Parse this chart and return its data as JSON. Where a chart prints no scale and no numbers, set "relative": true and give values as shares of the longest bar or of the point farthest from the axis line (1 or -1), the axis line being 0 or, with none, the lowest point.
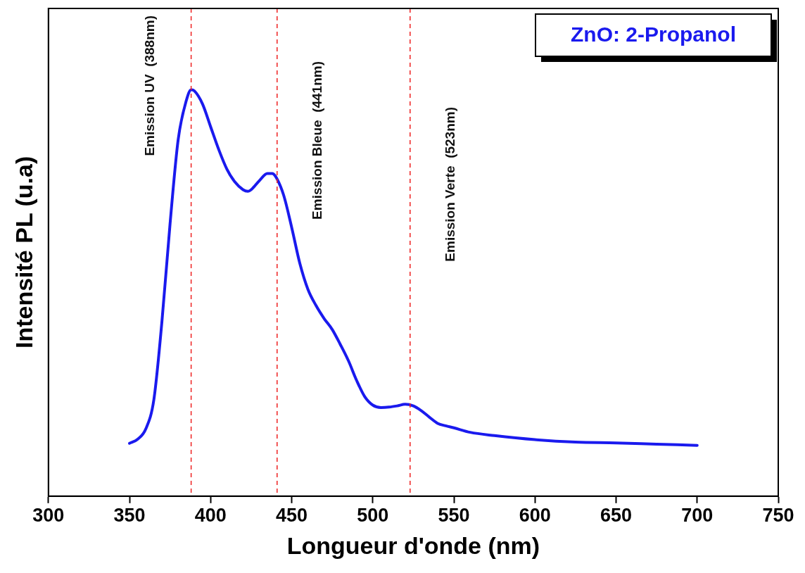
{
  "chart_data": {
    "type": "line",
    "title": "ZnO: 2-Propanol",
    "xlabel": "Longueur d'onde (nm)",
    "ylabel": "Intensité PL (u.a)",
    "relative": true,
    "xlim": [
      300,
      750
    ],
    "xticks": [
      300,
      350,
      400,
      450,
      500,
      550,
      600,
      650,
      700,
      750
    ],
    "series": [
      {
        "color": "#1a1aee",
        "x": [
          350,
          355,
          360,
          365,
          370,
          375,
          380,
          385,
          388,
          390,
          395,
          400,
          405,
          410,
          415,
          420,
          423,
          425,
          430,
          435,
          438,
          440,
          445,
          450,
          455,
          460,
          465,
          470,
          475,
          480,
          485,
          490,
          495,
          500,
          505,
          510,
          515,
          520,
          525,
          530,
          535,
          540,
          545,
          550,
          560,
          575,
          600,
          625,
          650,
          675,
          700
        ],
        "values": [
          0.13,
          0.14,
          0.165,
          0.237,
          0.43,
          0.67,
          0.877,
          0.973,
          1.0,
          0.997,
          0.965,
          0.909,
          0.853,
          0.805,
          0.773,
          0.754,
          0.75,
          0.754,
          0.776,
          0.794,
          0.794,
          0.787,
          0.741,
          0.661,
          0.573,
          0.509,
          0.469,
          0.437,
          0.41,
          0.373,
          0.333,
          0.285,
          0.245,
          0.224,
          0.218,
          0.219,
          0.222,
          0.226,
          0.222,
          0.21,
          0.194,
          0.179,
          0.173,
          0.168,
          0.157,
          0.149,
          0.139,
          0.133,
          0.131,
          0.128,
          0.125
        ]
      }
    ],
    "ref_lines": [
      {
        "axis": "x",
        "value": 388,
        "label": "Emission UV  (388nm)",
        "color": "#ee2222",
        "line_style": "dashed"
      },
      {
        "axis": "x",
        "value": 441,
        "label": "Emission Bleue  (441nm)",
        "color": "#ee2222",
        "line_style": "dashed"
      },
      {
        "axis": "x",
        "value": 523,
        "label": "Emission Verte  (523nm)",
        "color": "#ee2222",
        "line_style": "dashed"
      }
    ],
    "grid": false,
    "legend": false,
    "marker": "none",
    "line_style": "solid"
  }
}
